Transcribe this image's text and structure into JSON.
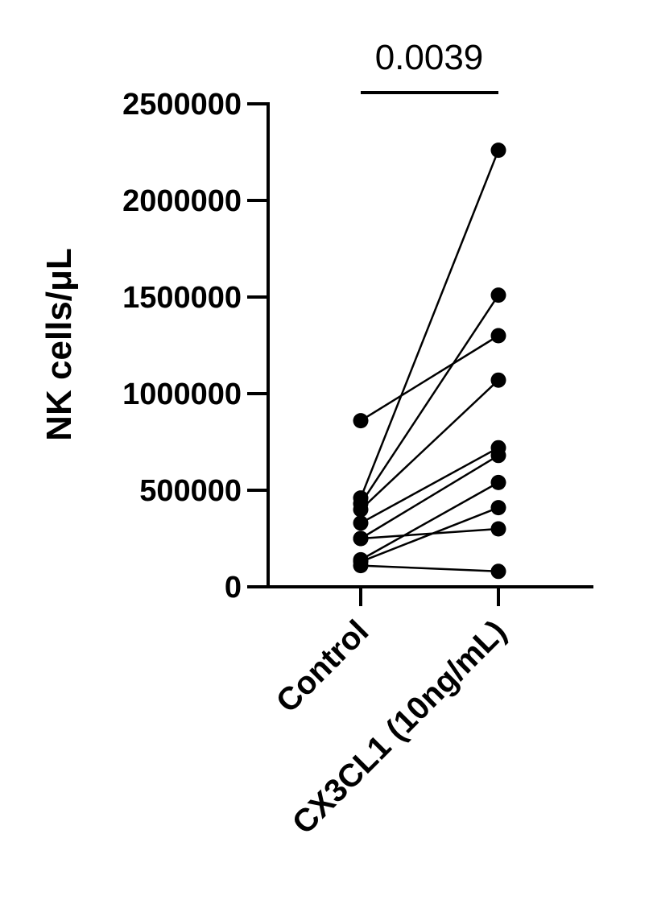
{
  "chart_data": {
    "type": "scatter",
    "subtype": "paired-dot-line",
    "title": "",
    "xlabel": "",
    "ylabel": "NK cells/μL",
    "categories": [
      "Control",
      "CX3CL1 (10ng/mL)"
    ],
    "ylim": [
      0,
      2500000
    ],
    "yticks": [
      0,
      500000,
      1000000,
      1500000,
      2000000,
      2500000
    ],
    "ytick_labels": [
      "0",
      "500000",
      "1000000",
      "1500000",
      "2000000",
      "2500000"
    ],
    "grid": false,
    "legend": "none",
    "significance": {
      "label": "0.0039",
      "between": [
        "Control",
        "CX3CL1 (10ng/mL)"
      ]
    },
    "pairs": [
      {
        "control": 860000,
        "treated": 1300000
      },
      {
        "control": 460000,
        "treated": 2260000
      },
      {
        "control": 430000,
        "treated": 1510000
      },
      {
        "control": 400000,
        "treated": 1070000
      },
      {
        "control": 330000,
        "treated": 720000
      },
      {
        "control": 250000,
        "treated": 300000
      },
      {
        "control": 250000,
        "treated": 680000
      },
      {
        "control": 140000,
        "treated": 540000
      },
      {
        "control": 130000,
        "treated": 410000
      },
      {
        "control": 110000,
        "treated": 80000
      }
    ],
    "colors": {
      "marker": "#000000",
      "line": "#000000",
      "axis": "#000000"
    }
  }
}
